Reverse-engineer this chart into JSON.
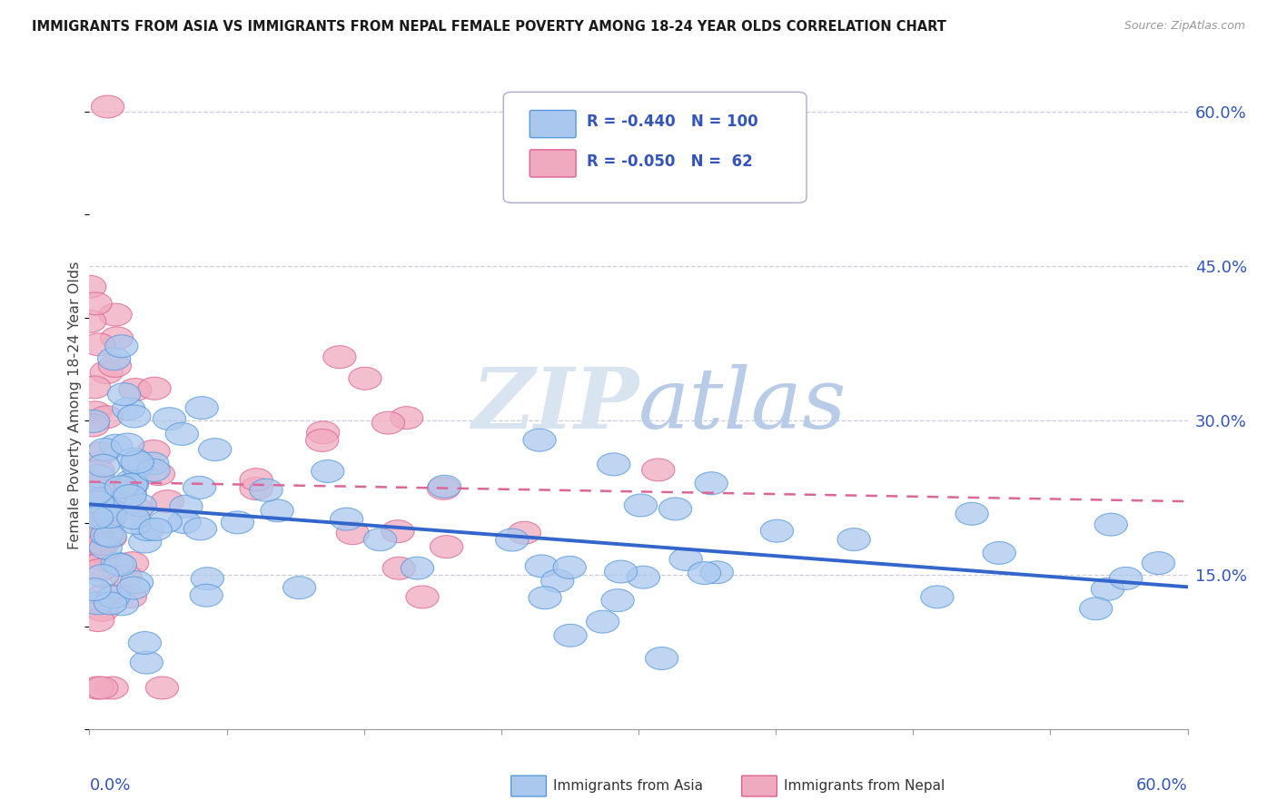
{
  "title": "IMMIGRANTS FROM ASIA VS IMMIGRANTS FROM NEPAL FEMALE POVERTY AMONG 18-24 YEAR OLDS CORRELATION CHART",
  "source": "Source: ZipAtlas.com",
  "ylabel": "Female Poverty Among 18-24 Year Olds",
  "xmin": 0.0,
  "xmax": 0.6,
  "ymin": 0.0,
  "ymax": 0.63,
  "legend_R_asia": "-0.440",
  "legend_N_asia": "100",
  "legend_R_nepal": "-0.050",
  "legend_N_nepal": " 62",
  "color_asia_fill": "#aac8ee",
  "color_asia_edge": "#5599dd",
  "color_nepal_fill": "#f0aac0",
  "color_nepal_edge": "#e06090",
  "color_asia_line": "#3366cc",
  "color_nepal_line": "#dd6699",
  "color_text_blue": "#3355bb",
  "watermark_color": "#dde8f5",
  "grid_color": "#ccccdd",
  "asia_intercept": 0.215,
  "asia_slope": -0.155,
  "nepal_intercept": 0.2,
  "nepal_slope": -0.05,
  "seed": 17
}
